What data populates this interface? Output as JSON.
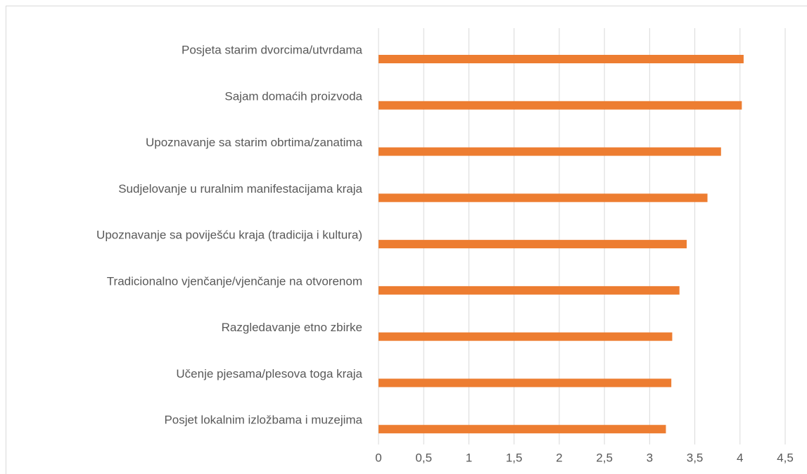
{
  "chart_data": {
    "type": "bar",
    "orientation": "horizontal",
    "categories": [
      "Posjeta starim dvorcima/utvrdama",
      "Sajam domaćih proizvoda",
      "Upoznavanje sa starim obrtima/zanatima",
      "Sudjelovanje u ruralnim manifestacijama kraja",
      "Upoznavanje sa poviješću kraja (tradicija i kultura)",
      "Tradicionalno vjenčanje/vjenčanje na otvorenom",
      "Razgledavanje etno zbirke",
      "Učenje pjesama/plesova toga kraja",
      "Posjet lokalnim izložbama i muzejima"
    ],
    "values": [
      4.04,
      4.02,
      3.79,
      3.64,
      3.41,
      3.33,
      3.25,
      3.24,
      3.18
    ],
    "color": "#ed7d31",
    "xlim": [
      0,
      4.5
    ],
    "xticks": [
      0,
      {
        "value": 0.5,
        "label": "0,5"
      },
      1,
      {
        "value": 1.5,
        "label": "1,5"
      },
      2,
      {
        "value": 2.5,
        "label": "2,5"
      },
      3,
      {
        "value": 3.5,
        "label": "3,5"
      },
      4,
      {
        "value": 4.5,
        "label": "4,5"
      }
    ],
    "grid": true
  }
}
